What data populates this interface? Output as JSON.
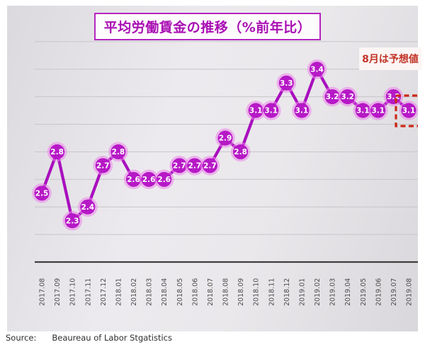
{
  "page": {
    "title": "平均労働賃金の推移（%前年比）",
    "annotation": "8月は予想値",
    "source_label": "Source:",
    "source_text": "Beaureau of Labor Stgatistics"
  },
  "chart_data": {
    "type": "line",
    "title": "平均労働賃金の推移（%前年比）",
    "categories": [
      "2017.08",
      "2017.09",
      "2017.10",
      "2017.11",
      "2017.12",
      "2018.01",
      "2018.02",
      "2018.03",
      "2018.04",
      "2018.05",
      "2018.06",
      "2018.07",
      "2018.08",
      "2018.09",
      "2018.10",
      "2018.11",
      "2018.12",
      "2019.01",
      "2019.02",
      "2019.03",
      "2019.04",
      "2019.05",
      "2019.06",
      "2019.07",
      "2019.08"
    ],
    "values": [
      2.5,
      2.8,
      2.3,
      2.4,
      2.7,
      2.8,
      2.6,
      2.6,
      2.6,
      2.7,
      2.7,
      2.7,
      2.9,
      2.8,
      3.1,
      3.1,
      3.3,
      3.1,
      3.4,
      3.2,
      3.2,
      3.1,
      3.1,
      3.2,
      3.1
    ],
    "xlabel": "",
    "ylabel": "",
    "ylim": [
      2.0,
      3.6
    ],
    "grid": true,
    "grid_step": 0.2,
    "annotation": "8月は予想値",
    "forecast_index": 24,
    "legend_position": "none",
    "colors": {
      "line": "#a90fbe",
      "marker": "#b619c6",
      "marker_halo": "#ed83eb",
      "value_label": "#ffffff",
      "title": "#a90fb4",
      "annotation_text": "#c23427",
      "forecast_box": "#cb2817",
      "axis": "#3f3f3f",
      "gridline": "#c7c5ca",
      "tick_label": "#4c4c4c"
    }
  }
}
